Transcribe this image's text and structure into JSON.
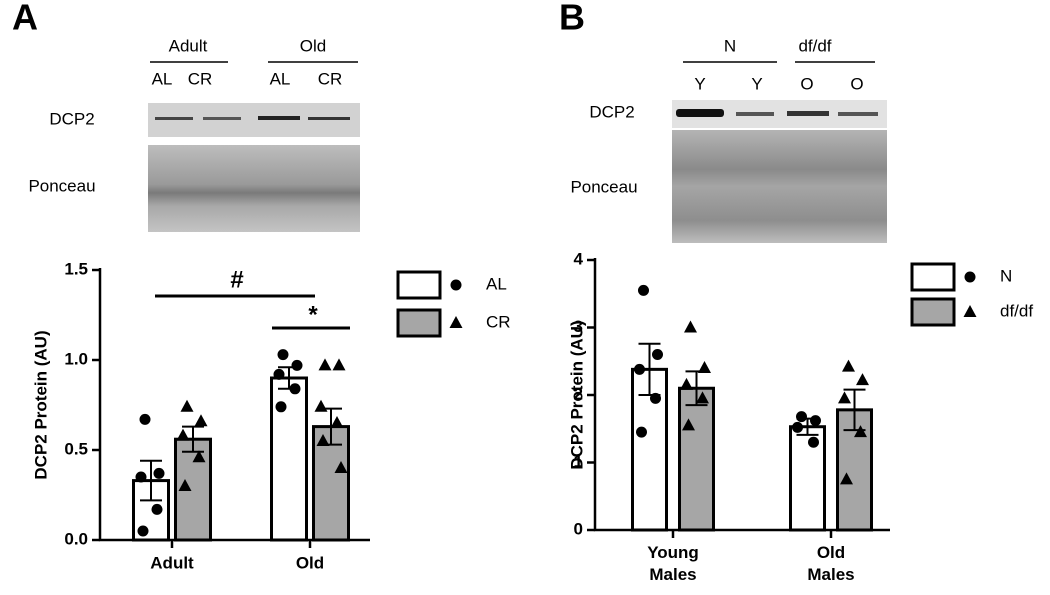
{
  "panel_labels": [
    "A",
    "B"
  ],
  "blots": [
    {
      "groups": [
        "Adult",
        "Old"
      ],
      "lanes": [
        "AL",
        "CR",
        "AL",
        "CR"
      ],
      "rows": [
        "DCP2",
        "Ponceau"
      ]
    },
    {
      "groups": [
        "N",
        "df/df"
      ],
      "lanes": [
        "Y",
        "Y",
        "O",
        "O"
      ],
      "rows": [
        "DCP2",
        "Ponceau"
      ]
    }
  ],
  "chart_data": [
    {
      "type": "bar",
      "y_label": "DCP2 Protein (AU)",
      "categories": [
        "Adult",
        "Old"
      ],
      "ylim": [
        0,
        1.5
      ],
      "yticks": [
        {
          "value": 0,
          "label": "0.0"
        },
        {
          "value": 0.5,
          "label": "0.5"
        },
        {
          "value": 1,
          "label": "1.0"
        },
        {
          "value": 1.5,
          "label": "1.5"
        }
      ],
      "series": [
        {
          "name": "AL",
          "color": "#ffffff",
          "marker": "circle",
          "values": [
            0.33,
            0.9
          ],
          "errors": [
            0.11,
            0.06
          ],
          "points": [
            [
              0.67,
              0.37,
              0.35,
              0.17,
              0.05
            ],
            [
              1.03,
              0.97,
              0.92,
              0.84,
              0.74
            ]
          ]
        },
        {
          "name": "CR",
          "color": "#a6a6a6",
          "marker": "triangle",
          "values": [
            0.56,
            0.63
          ],
          "errors": [
            0.07,
            0.1
          ],
          "points": [
            [
              0.74,
              0.66,
              0.58,
              0.46,
              0.3
            ],
            [
              0.97,
              0.97,
              0.74,
              0.65,
              0.55,
              0.4
            ]
          ]
        }
      ],
      "annotations": [
        "#",
        "*"
      ]
    },
    {
      "type": "bar",
      "y_label": "DCP2 Protein (AU)",
      "categories": [
        "Young Males",
        "Old Males"
      ],
      "ylim": [
        0,
        4
      ],
      "yticks": [
        0,
        1,
        2,
        3,
        4
      ],
      "series": [
        {
          "name": "N",
          "color": "#ffffff",
          "marker": "circle",
          "values": [
            2.38,
            1.53
          ],
          "errors": [
            0.38,
            0.12
          ],
          "points": [
            [
              3.55,
              2.6,
              2.38,
              1.95,
              1.45
            ],
            [
              1.68,
              1.62,
              1.52,
              1.3
            ]
          ]
        },
        {
          "name": "df/df",
          "color": "#a6a6a6",
          "marker": "triangle",
          "values": [
            2.1,
            1.78
          ],
          "errors": [
            0.25,
            0.3
          ],
          "points": [
            [
              3.0,
              2.4,
              2.15,
              1.95,
              1.55
            ],
            [
              2.42,
              2.22,
              1.95,
              1.45,
              0.75
            ]
          ]
        }
      ]
    }
  ]
}
